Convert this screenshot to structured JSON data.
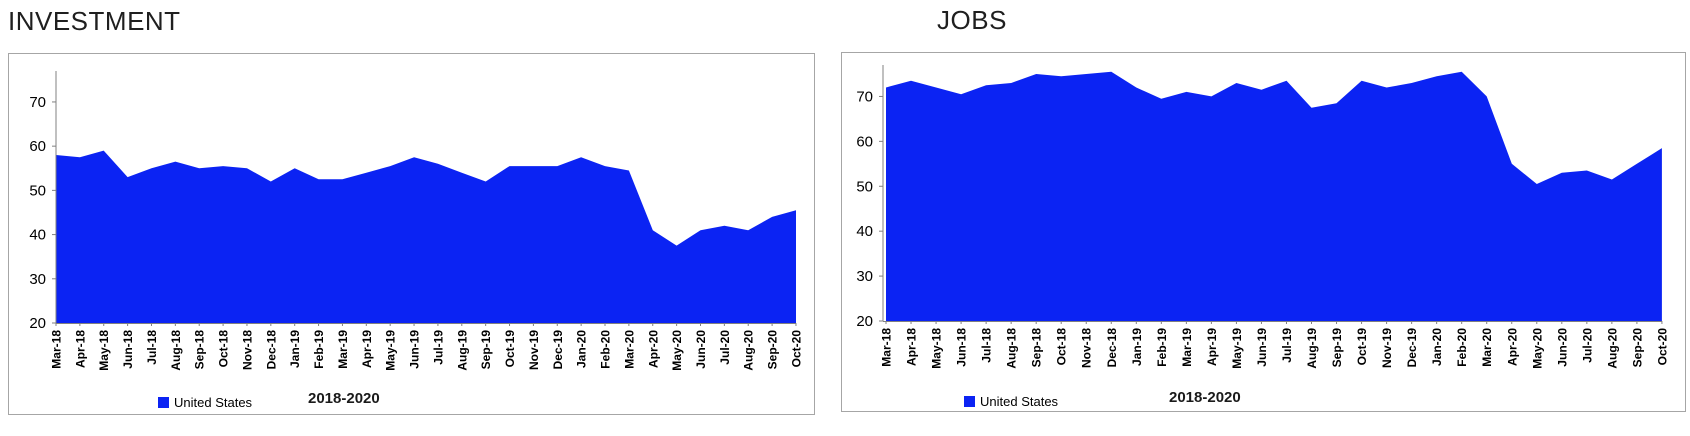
{
  "chart_data": [
    {
      "type": "area",
      "title": "INVESTMENT",
      "xlabel": "2018-2020",
      "legend_position": "bottom",
      "grid": false,
      "fill_color": "#0b23f3",
      "axis_color": "#808080",
      "border_color": "#a6a6a6",
      "ylim": [
        20,
        77
      ],
      "yticks": [
        20,
        30,
        40,
        50,
        60,
        70
      ],
      "x": [
        "Mar-18",
        "Apr-18",
        "May-18",
        "Jun-18",
        "Jul-18",
        "Aug-18",
        "Sep-18",
        "Oct-18",
        "Nov-18",
        "Dec-18",
        "Jan-19",
        "Feb-19",
        "Mar-19",
        "Apr-19",
        "May-19",
        "Jun-19",
        "Jul-19",
        "Aug-19",
        "Sep-19",
        "Oct-19",
        "Nov-19",
        "Dec-19",
        "Jan-20",
        "Feb-20",
        "Mar-20",
        "Apr-20",
        "May-20",
        "Jun-20",
        "Jul-20",
        "Aug-20",
        "Sep-20",
        "Oct-20"
      ],
      "series": [
        {
          "name": "United States",
          "values": [
            58,
            57.5,
            59,
            53,
            55,
            56.5,
            55,
            55.5,
            55,
            52,
            55,
            52.5,
            52.5,
            54,
            55.5,
            57.5,
            56,
            54,
            52,
            55.5,
            55.5,
            55.5,
            57.5,
            55.5,
            54.5,
            41,
            37.5,
            41,
            42,
            41,
            44,
            45.5
          ]
        }
      ]
    },
    {
      "type": "area",
      "title": "JOBS",
      "xlabel": "2018-2020",
      "legend_position": "bottom",
      "grid": false,
      "fill_color": "#0b23f3",
      "axis_color": "#808080",
      "border_color": "#a6a6a6",
      "ylim": [
        20,
        77
      ],
      "yticks": [
        20,
        30,
        40,
        50,
        60,
        70
      ],
      "x": [
        "Mar-18",
        "Apr-18",
        "May-18",
        "Jun-18",
        "Jul-18",
        "Aug-18",
        "Sep-18",
        "Oct-18",
        "Nov-18",
        "Dec-18",
        "Jan-19",
        "Feb-19",
        "Mar-19",
        "Apr-19",
        "May-19",
        "Jun-19",
        "Jul-19",
        "Aug-19",
        "Sep-19",
        "Oct-19",
        "Nov-19",
        "Dec-19",
        "Jan-20",
        "Feb-20",
        "Mar-20",
        "Apr-20",
        "May-20",
        "Jun-20",
        "Jul-20",
        "Aug-20",
        "Sep-20",
        "Oct-20"
      ],
      "series": [
        {
          "name": "United States",
          "values": [
            72,
            73.5,
            72,
            70.5,
            72.5,
            73,
            75,
            74.5,
            75,
            75.5,
            72,
            69.5,
            71,
            70,
            73,
            71.5,
            73.5,
            67.5,
            68.5,
            73.5,
            72,
            73,
            74.5,
            75.5,
            70,
            55,
            50.5,
            53,
            53.5,
            51.5,
            55,
            58.5
          ]
        }
      ]
    }
  ]
}
